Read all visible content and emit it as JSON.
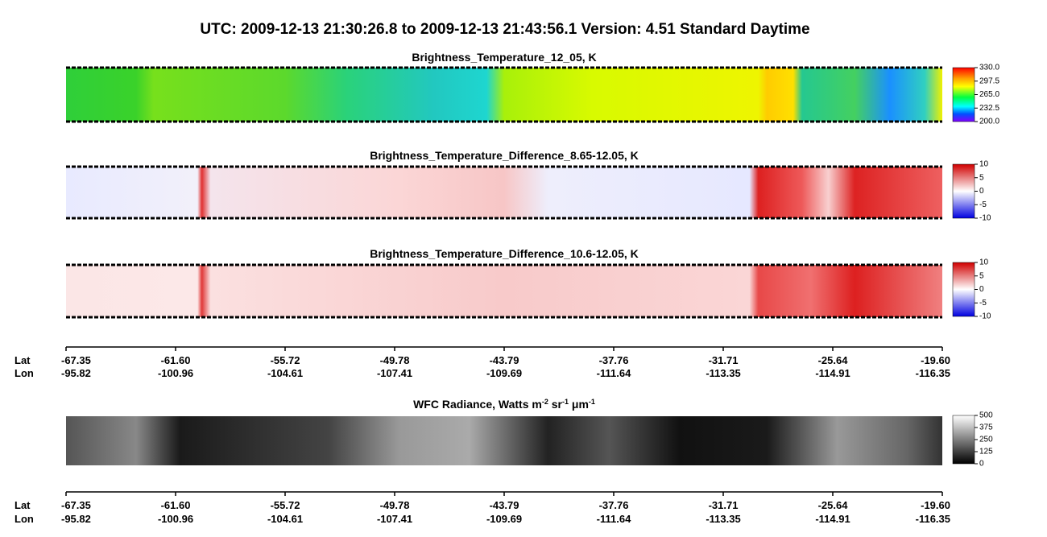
{
  "title": "UTC:  2009-12-13   21:30:26.8  to  2009-12-13   21:43:56.1    Version: 4.51  Standard Daytime",
  "panels": [
    {
      "title": "Brightness_Temperature_12_05, K",
      "colorbar_ticks": [
        "330.0",
        "297.5",
        "265.0",
        "232.5",
        "200.0"
      ]
    },
    {
      "title": "Brightness_Temperature_Difference_8.65-12.05, K",
      "colorbar_ticks": [
        "10",
        "5",
        "0",
        "-5",
        "-10"
      ]
    },
    {
      "title": "Brightness_Temperature_Difference_10.6-12.05, K",
      "colorbar_ticks": [
        "10",
        "5",
        "0",
        "-5",
        "-10"
      ]
    },
    {
      "title_parts": [
        "WFC Radiance, Watts m",
        "-2",
        " sr",
        "-1",
        " μm",
        "-1"
      ],
      "colorbar_ticks": [
        "500",
        "375",
        "250",
        "125",
        "0"
      ]
    }
  ],
  "axis": {
    "lat_label": "Lat",
    "lon_label": "Lon",
    "lat": [
      "-67.35",
      "-61.60",
      "-55.72",
      "-49.78",
      "-43.79",
      "-37.76",
      "-31.71",
      "-25.64",
      "-19.60"
    ],
    "lon": [
      "-95.82",
      "-100.96",
      "-104.61",
      "-107.41",
      "-109.69",
      "-111.64",
      "-113.35",
      "-114.91",
      "-116.35"
    ]
  }
}
